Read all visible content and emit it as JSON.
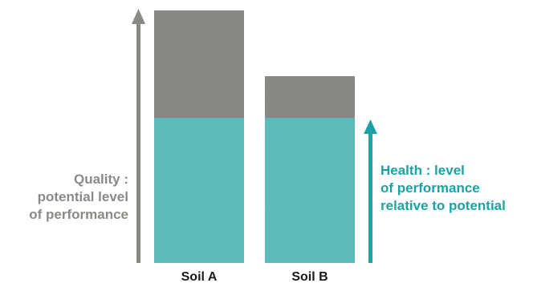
{
  "colors": {
    "quality": "#8a8985",
    "health": "#5ebfbf",
    "health_text": "#1aa3a6",
    "bar_top": "#8b8a85"
  },
  "quality_label": [
    "Quality :",
    "potential level",
    "of performance"
  ],
  "health_label": [
    "Health : level",
    "of performance",
    "relative to potential"
  ],
  "soils": [
    {
      "name": "Soil A",
      "health_level": 1.0,
      "potential_level": 1.0
    },
    {
      "name": "Soil B",
      "health_level": 1.0,
      "potential_level": 0.8
    }
  ],
  "quality_arrow_icon": "arrow-up-icon",
  "health_arrow_icon": "arrow-up-icon"
}
